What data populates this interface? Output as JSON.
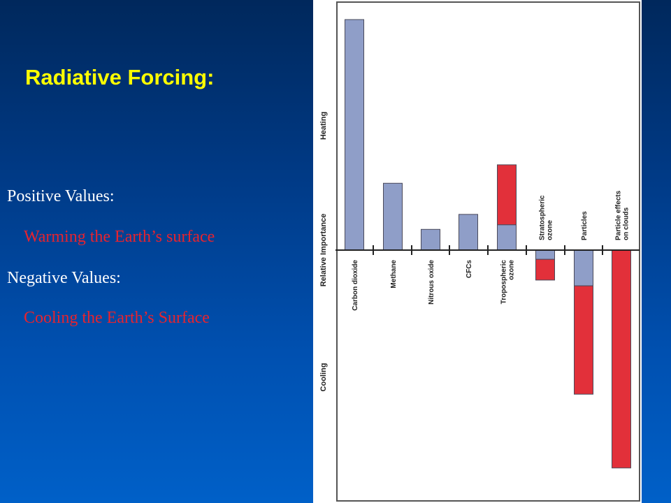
{
  "slide": {
    "title": "Radiative Forcing:",
    "positive_label": "Positive Values:",
    "positive_desc": "Warming  the Earth’s surface",
    "negative_label": "Negative Values:",
    "negative_desc": "Cooling the Earth’s Surface"
  },
  "colors": {
    "background_top": "#00285c",
    "background_bottom": "#0060c8",
    "title": "#ffff00",
    "highlight": "#e8232e",
    "bar_blue": "#8f9ec8",
    "bar_red": "#e2303a"
  },
  "chart_data": {
    "type": "bar",
    "ylabel": "Relative Importance",
    "y_top_label": "Heating",
    "y_bottom_label": "Cooling",
    "categories": [
      {
        "label": "Carbon dioxide",
        "label_side": "below"
      },
      {
        "label": "Methane",
        "label_side": "below"
      },
      {
        "label": "Nitrous oxide",
        "label_side": "below"
      },
      {
        "label": "CFCs",
        "label_side": "below"
      },
      {
        "label": "Tropospheric ozone",
        "label_side": "below"
      },
      {
        "label": "Stratospheric ozone",
        "label_side": "above"
      },
      {
        "label": "Particles",
        "label_side": "above"
      },
      {
        "label": "Particle effects on clouds",
        "label_side": "above"
      }
    ],
    "segments": [
      {
        "category": 0,
        "start": 0,
        "end": 100,
        "color": "blue"
      },
      {
        "category": 1,
        "start": 0,
        "end": 29,
        "color": "blue"
      },
      {
        "category": 2,
        "start": 0,
        "end": 9,
        "color": "blue"
      },
      {
        "category": 3,
        "start": 0,
        "end": 15.5,
        "color": "blue"
      },
      {
        "category": 4,
        "start": 0,
        "end": 11,
        "color": "blue"
      },
      {
        "category": 4,
        "start": 11,
        "end": 37,
        "color": "red"
      },
      {
        "category": 5,
        "start": 0,
        "end": -4,
        "color": "blue"
      },
      {
        "category": 5,
        "start": -4,
        "end": -13,
        "color": "red"
      },
      {
        "category": 6,
        "start": 0,
        "end": -15.5,
        "color": "blue"
      },
      {
        "category": 6,
        "start": -15.5,
        "end": -62.5,
        "color": "red"
      },
      {
        "category": 7,
        "start": 0,
        "end": -94.5,
        "color": "red"
      }
    ],
    "ylim": [
      -110,
      100
    ],
    "y_tick_labels": false,
    "grid": false,
    "legend": "none"
  }
}
